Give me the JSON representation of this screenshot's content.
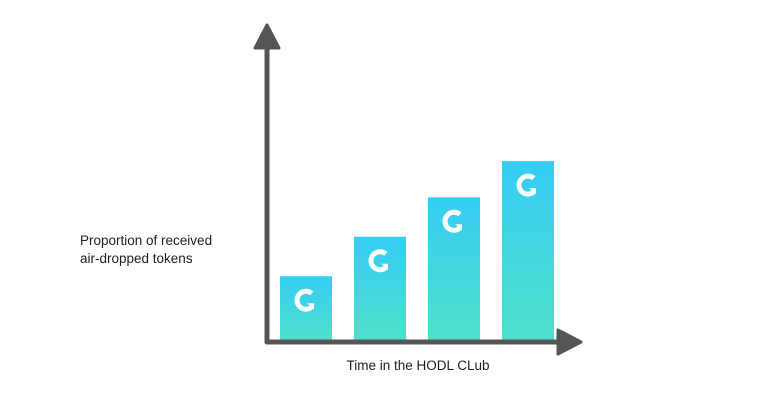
{
  "chart_data": {
    "type": "bar",
    "title": "",
    "ylabel_lines": [
      "Proportion of received",
      "air-dropped tokens"
    ],
    "xlabel": "Time in the HODL CLub",
    "categories": [
      "",
      "",
      "",
      ""
    ],
    "values": [
      1,
      1.6,
      2.2,
      2.75
    ],
    "ylim": [
      0,
      4.5
    ],
    "grid": false,
    "legend": "none",
    "bar_icon": "coin-logo-icon",
    "colors": {
      "bar_top": "#36cdf5",
      "bar_bottom": "#4de0c9",
      "axis": "#555555",
      "icon": "#ffffff"
    }
  }
}
